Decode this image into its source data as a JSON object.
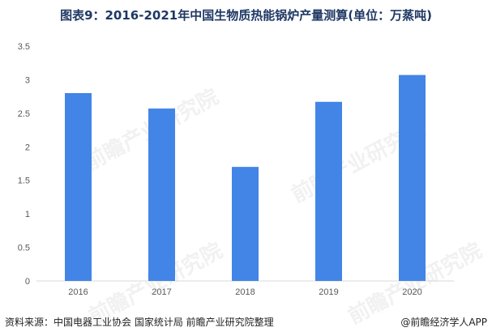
{
  "title": "图表9：2016-2021年中国生物质热能锅炉产量测算(单位：万蒸吨)",
  "watermark_text": "前瞻产业研究院",
  "footer": {
    "source": "资料来源：中国电器工业协会 国家统计局 前瞻产业研究院整理",
    "brand": "@前瞻经济学人APP"
  },
  "colors": {
    "bar": "#4285e6",
    "title": "#1f3864",
    "axis_text": "#595959",
    "axis_line": "#d9d9d9"
  },
  "chart_data": {
    "type": "bar",
    "title": "图表9：2016-2021年中国生物质热能锅炉产量测算(单位：万蒸吨)",
    "xlabel": "",
    "ylabel": "",
    "categories": [
      "2016",
      "2017",
      "2018",
      "2019",
      "2020"
    ],
    "values": [
      2.8,
      2.57,
      1.7,
      2.67,
      3.07
    ],
    "ylim": [
      0,
      3.5
    ],
    "yticks": [
      "0",
      "0.5",
      "1",
      "1.5",
      "2",
      "2.5",
      "3",
      "3.5"
    ],
    "grid": false,
    "legend": "none"
  }
}
